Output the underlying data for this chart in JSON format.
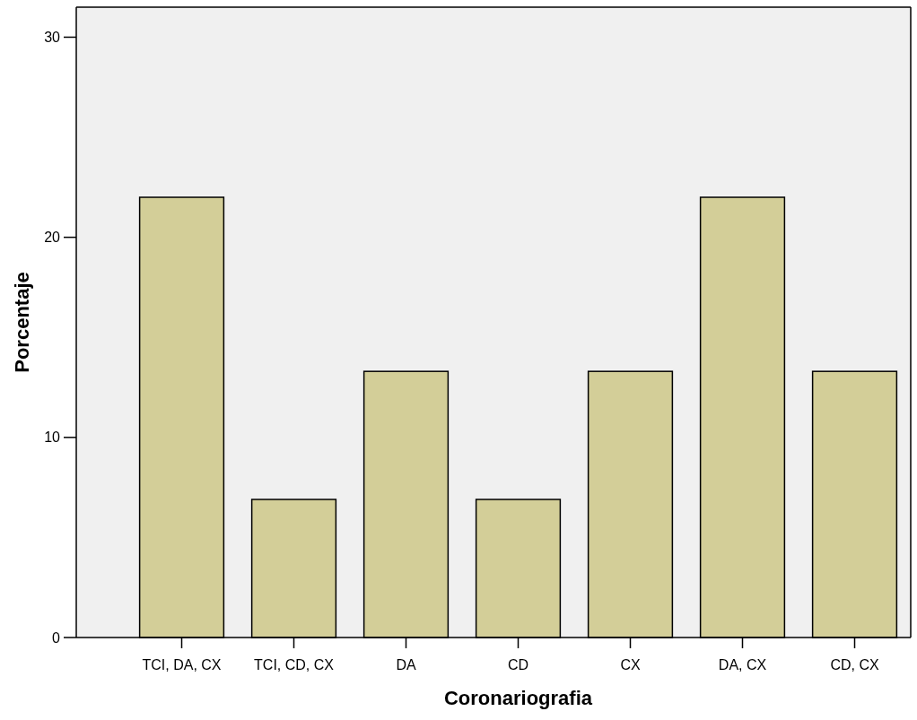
{
  "chart_data": {
    "type": "bar",
    "xlabel": "Coronariografia",
    "ylabel": "Porcentaje",
    "categories": [
      "TCI, DA, CX",
      "TCI, CD, CX",
      "DA",
      "CD",
      "CX",
      "DA, CX",
      "CD, CX"
    ],
    "values": [
      22,
      6.9,
      13.3,
      6.9,
      13.3,
      22,
      13.3
    ],
    "color": "#d3ce98",
    "ylim": [
      0,
      31.5
    ],
    "yticks": [
      0,
      10,
      20,
      30
    ],
    "grid": false
  }
}
